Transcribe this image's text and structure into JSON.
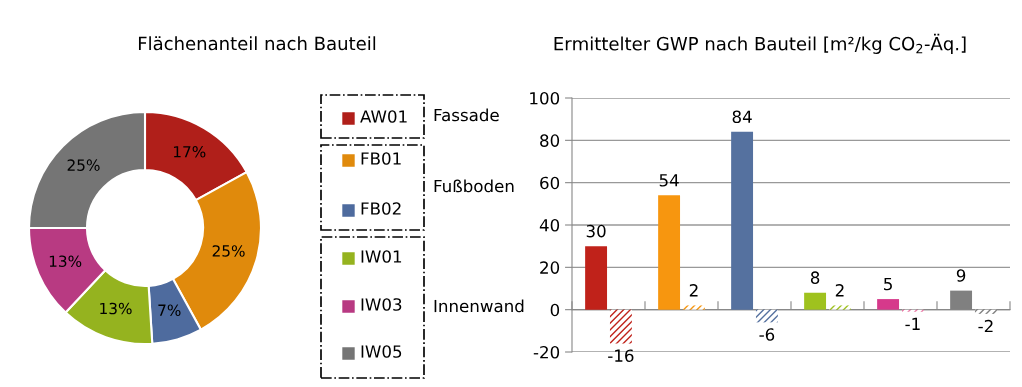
{
  "chart_data": [
    {
      "type": "donut",
      "title": "Flächenanteil nach Bauteil",
      "categories": [
        "AW01",
        "FB01",
        "FB02",
        "IW01",
        "IW03",
        "IW05"
      ],
      "values": [
        17,
        25,
        7,
        13,
        13,
        25
      ],
      "colors": [
        "#b01f1a",
        "#e08a0c",
        "#4e6b9e",
        "#95b31f",
        "#b83a82",
        "#757575"
      ],
      "value_labels": [
        "17%",
        "25%",
        "7%",
        "13%",
        "13%",
        "25%"
      ],
      "legend": "right",
      "annotations": [
        "Fassade",
        "Fußboden",
        "Innenwand"
      ]
    },
    {
      "type": "bar",
      "title": "Ermittelter GWP nach Bauteil [m²/kg CO$_{2}$-Äq.]",
      "categories": [
        null,
        null,
        null,
        null,
        null,
        null
      ],
      "series": [
        {
          "colors": [
            "#c0221a",
            "#f7960f",
            "#55719f",
            "#9fc21e",
            "#d6398b",
            "#808080"
          ],
          "values": [
            30,
            54,
            84,
            8,
            5,
            9
          ]
        },
        {
          "colors": [
            "#c0221a",
            "#f7960f",
            "#55719f",
            "#9fc21e",
            "#e87aa6",
            "#808080"
          ],
          "values": [
            -16,
            2,
            -6,
            2,
            -1,
            -2
          ]
        }
      ],
      "ylim": [
        -20,
        100
      ],
      "yticks": [
        -20,
        0,
        20,
        40,
        60,
        80,
        100
      ],
      "grid": "y",
      "data_labels": true
    }
  ]
}
